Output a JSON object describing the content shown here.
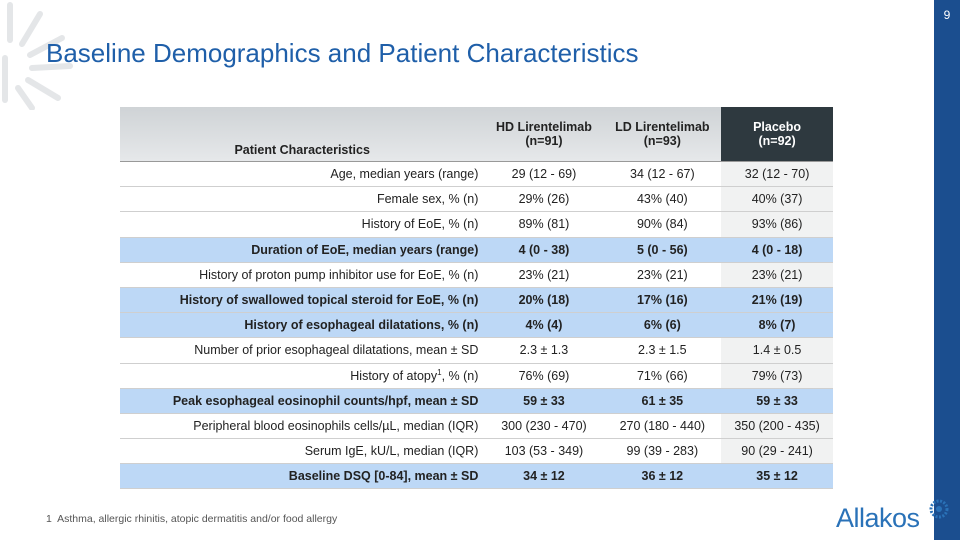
{
  "page_number": "9",
  "title": "Baseline Demographics and Patient Characteristics",
  "table": {
    "header": [
      {
        "name": "Patient Characteristics"
      },
      {
        "name": "HD Lirentelimab",
        "n": "(n=91)"
      },
      {
        "name": "LD Lirentelimab",
        "n": "(n=93)"
      },
      {
        "name": "Placebo",
        "n": "(n=92)"
      }
    ],
    "rows": [
      {
        "label": "Age, median years (range)",
        "cells": [
          "29 (12 - 69)",
          "34 (12 - 67)",
          "32 (12 - 70)"
        ]
      },
      {
        "label": "Female sex, % (n)",
        "cells": [
          "29% (26)",
          "43% (40)",
          "40% (37)"
        ]
      },
      {
        "label": "History of EoE, % (n)",
        "cells": [
          "89% (81)",
          "90% (84)",
          "93% (86)"
        ]
      },
      {
        "label": "Duration of EoE, median years (range)",
        "cells": [
          "4 (0 - 38)",
          "5 (0 - 56)",
          "4 (0 - 18)"
        ],
        "highlight": true
      },
      {
        "label": "History of proton pump inhibitor use for EoE, % (n)",
        "cells": [
          "23% (21)",
          "23% (21)",
          "23% (21)"
        ]
      },
      {
        "label": "History of swallowed topical steroid for EoE, % (n)",
        "cells": [
          "20% (18)",
          "17% (16)",
          "21% (19)"
        ],
        "highlight": true
      },
      {
        "label": "History of esophageal dilatations, % (n)",
        "cells": [
          "4% (4)",
          "6% (6)",
          "8% (7)"
        ],
        "highlight": true
      },
      {
        "label": "Number of prior esophageal dilatations, mean ± SD",
        "cells": [
          "2.3 ± 1.3",
          "2.3 ± 1.5",
          "1.4 ± 0.5"
        ]
      },
      {
        "label": "History of atopy",
        "label_sup": "1",
        "label_rest": ", % (n)",
        "cells": [
          "76% (69)",
          "71% (66)",
          "79% (73)"
        ]
      },
      {
        "label": "Peak esophageal eosinophil counts/hpf, mean ± SD",
        "cells": [
          "59 ± 33",
          "61 ± 35",
          "59 ± 33"
        ],
        "highlight": true
      },
      {
        "label": "Peripheral blood eosinophils cells/µL, median (IQR)",
        "cells": [
          "300 (230 - 470)",
          "270 (180 - 440)",
          "350 (200 - 435)"
        ]
      },
      {
        "label": "Serum IgE, kU/L, median (IQR)",
        "cells": [
          "103 (53 - 349)",
          "99 (39 - 283)",
          "90 (29 - 241)"
        ]
      },
      {
        "label": "Baseline DSQ [0-84], mean ± SD",
        "cells": [
          "34 ± 12",
          "36 ± 12",
          "35 ± 12"
        ],
        "highlight": true
      }
    ]
  },
  "footnote": {
    "number": "1",
    "text": "Asthma, allergic rhinitis, atopic dermatitis and/or food allergy"
  },
  "logo": "Allakos"
}
